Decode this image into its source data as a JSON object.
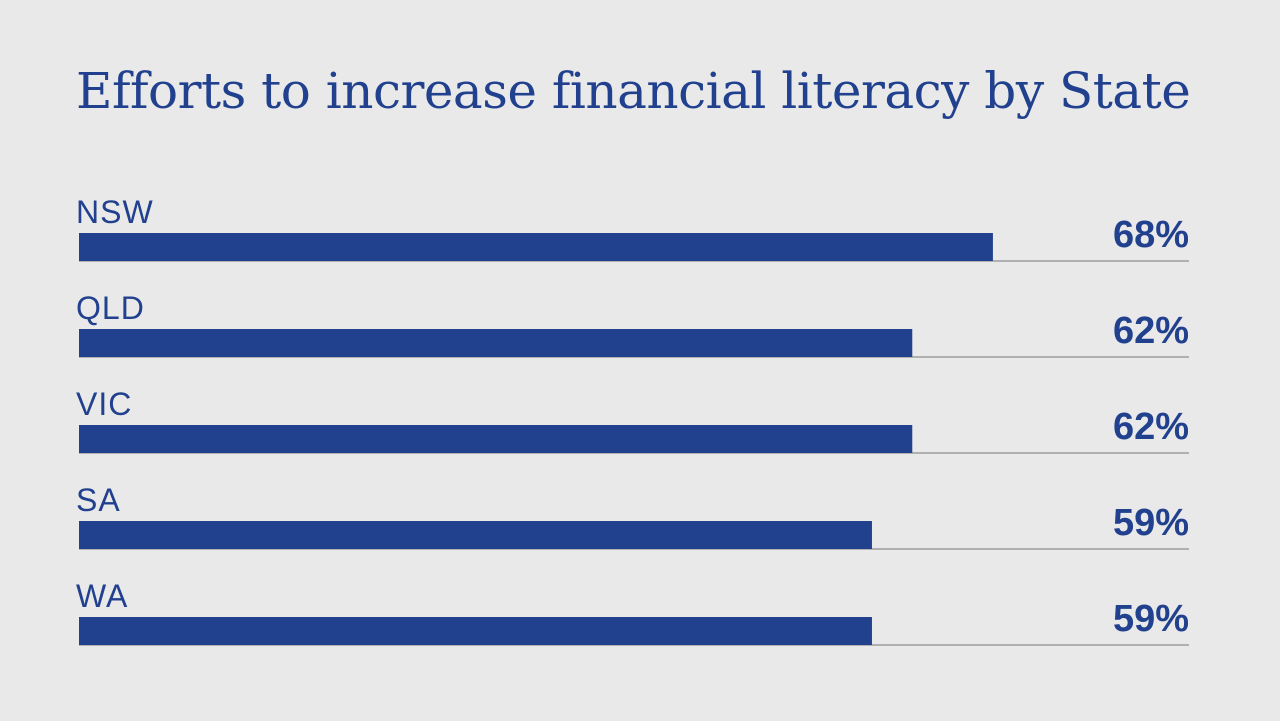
{
  "colors": {
    "background": "#e9e9e9",
    "bar": "#21418f",
    "text": "#21418f",
    "baseline": "#777777"
  },
  "chart_data": {
    "type": "bar",
    "orientation": "horizontal",
    "title": "Efforts to increase financial literacy by State",
    "categories": [
      "NSW",
      "QLD",
      "VIC",
      "SA",
      "WA"
    ],
    "values": [
      68,
      62,
      62,
      59,
      59
    ],
    "value_labels": [
      "68%",
      "62%",
      "62%",
      "59%",
      "59%"
    ],
    "unit": "%",
    "xlim": [
      0,
      100
    ],
    "grid": false,
    "legend": "none"
  }
}
